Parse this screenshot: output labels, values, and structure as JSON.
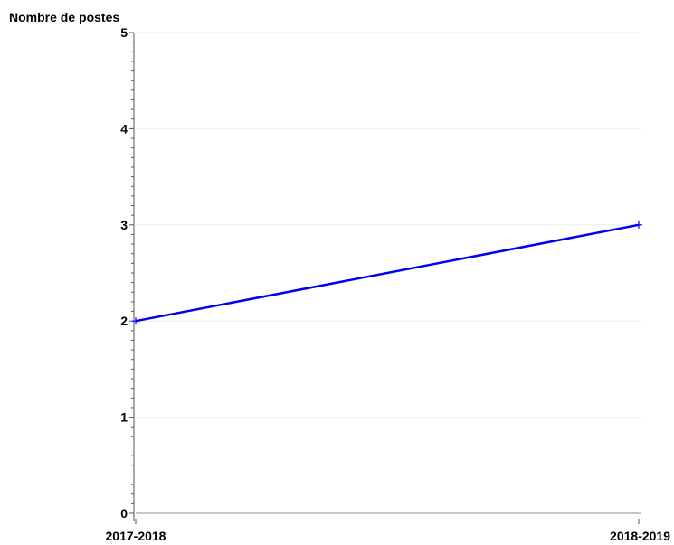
{
  "chart_data": {
    "type": "line",
    "title": "",
    "ylabel": "Nombre de postes",
    "xlabel": "",
    "categories": [
      "2017-2018",
      "2018-2019"
    ],
    "series": [
      {
        "values": [
          2,
          3
        ],
        "color": "#0000ee"
      }
    ],
    "ylim": [
      0,
      5
    ],
    "yticks": [
      0,
      1,
      2,
      3,
      4,
      5
    ],
    "grid": true,
    "legend": "none"
  }
}
